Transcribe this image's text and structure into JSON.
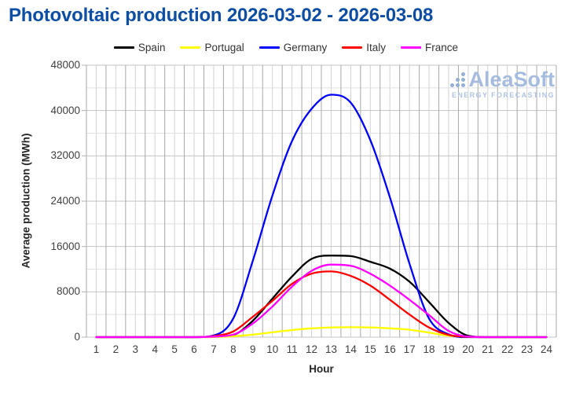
{
  "title": "Photovoltaic production 2026-03-02 - 2026-03-08",
  "logo": {
    "name": "AleaSoft",
    "tagline": "ENERGY FORECASTING"
  },
  "chart_data": {
    "type": "line",
    "title": "Photovoltaic production 2026-03-02 - 2026-03-08",
    "xlabel": "Hour",
    "ylabel": "Average production (MWh)",
    "x": [
      1,
      2,
      3,
      4,
      5,
      6,
      7,
      8,
      9,
      10,
      11,
      12,
      13,
      14,
      15,
      16,
      17,
      18,
      19,
      20,
      21,
      22,
      23,
      24
    ],
    "x_tick_labels": [
      "1",
      "2",
      "3",
      "4",
      "5",
      "6",
      "7",
      "8",
      "9",
      "10",
      "11",
      "12",
      "13",
      "14",
      "15",
      "16",
      "17",
      "18",
      "19",
      "20",
      "21",
      "22",
      "23",
      "24"
    ],
    "ylim": [
      0,
      48000
    ],
    "y_ticks": [
      0,
      8000,
      16000,
      24000,
      32000,
      40000,
      48000
    ],
    "y_minor_step": 4000,
    "x_minor_per_hour": 2,
    "grid": true,
    "legend_position": "top",
    "series": [
      {
        "name": "Spain",
        "color": "#000000",
        "values": [
          0,
          0,
          0,
          0,
          0,
          0,
          100,
          400,
          2900,
          6800,
          10700,
          13800,
          14400,
          14300,
          13300,
          12100,
          9800,
          6200,
          2500,
          250,
          0,
          0,
          0,
          0
        ]
      },
      {
        "name": "Portugal",
        "color": "#ffff00",
        "values": [
          0,
          0,
          0,
          0,
          0,
          0,
          30,
          150,
          450,
          850,
          1250,
          1550,
          1700,
          1750,
          1700,
          1550,
          1300,
          800,
          250,
          30,
          0,
          0,
          0,
          0
        ]
      },
      {
        "name": "Germany",
        "color": "#0000ff",
        "values": [
          0,
          0,
          0,
          0,
          0,
          0,
          300,
          3300,
          13500,
          25000,
          34600,
          40300,
          42800,
          41400,
          34800,
          24700,
          13000,
          3300,
          500,
          0,
          0,
          0,
          0,
          0
        ]
      },
      {
        "name": "Italy",
        "color": "#ff0000",
        "values": [
          0,
          0,
          0,
          0,
          0,
          0,
          200,
          1000,
          3600,
          6400,
          9400,
          11200,
          11600,
          10800,
          9100,
          6600,
          4000,
          1700,
          400,
          50,
          0,
          0,
          0,
          0
        ]
      },
      {
        "name": "France",
        "color": "#ff00ff",
        "values": [
          0,
          0,
          0,
          0,
          0,
          0,
          100,
          450,
          2400,
          5400,
          8900,
          11700,
          12800,
          12600,
          11200,
          9100,
          6600,
          3900,
          1100,
          100,
          0,
          0,
          0,
          0
        ]
      }
    ]
  }
}
